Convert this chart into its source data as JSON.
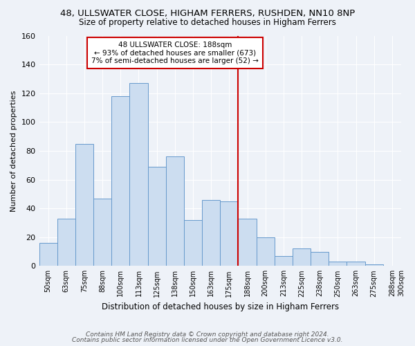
{
  "title1": "48, ULLSWATER CLOSE, HIGHAM FERRERS, RUSHDEN, NN10 8NP",
  "title2": "Size of property relative to detached houses in Higham Ferrers",
  "xlabel": "Distribution of detached houses by size in Higham Ferrers",
  "ylabel": "Number of detached properties",
  "bar_centers": [
    "50sqm",
    "63sqm",
    "75sqm",
    "88sqm",
    "100sqm",
    "113sqm",
    "125sqm",
    "138sqm",
    "150sqm",
    "163sqm",
    "175sqm",
    "188sqm",
    "200sqm",
    "213sqm",
    "225sqm",
    "238sqm",
    "250sqm",
    "263sqm",
    "275sqm",
    "288sqm"
  ],
  "right_edge_label": "300sqm",
  "bar_values": [
    16,
    33,
    85,
    47,
    118,
    127,
    69,
    76,
    32,
    46,
    45,
    33,
    20,
    7,
    12,
    10,
    3,
    3,
    1,
    0
  ],
  "bar_color": "#ccddf0",
  "bar_edge_color": "#6699cc",
  "vline_after_bar": 10,
  "vline_color": "#cc0000",
  "annotation_title": "48 ULLSWATER CLOSE: 188sqm",
  "annotation_line1": "← 93% of detached houses are smaller (673)",
  "annotation_line2": "7% of semi-detached houses are larger (52) →",
  "annotation_box_color": "#ffffff",
  "annotation_box_edge": "#cc0000",
  "ylim": [
    0,
    160
  ],
  "background_color": "#eef2f8",
  "grid_color": "#ffffff",
  "footer1": "Contains HM Land Registry data © Crown copyright and database right 2024.",
  "footer2": "Contains public sector information licensed under the Open Government Licence v3.0."
}
